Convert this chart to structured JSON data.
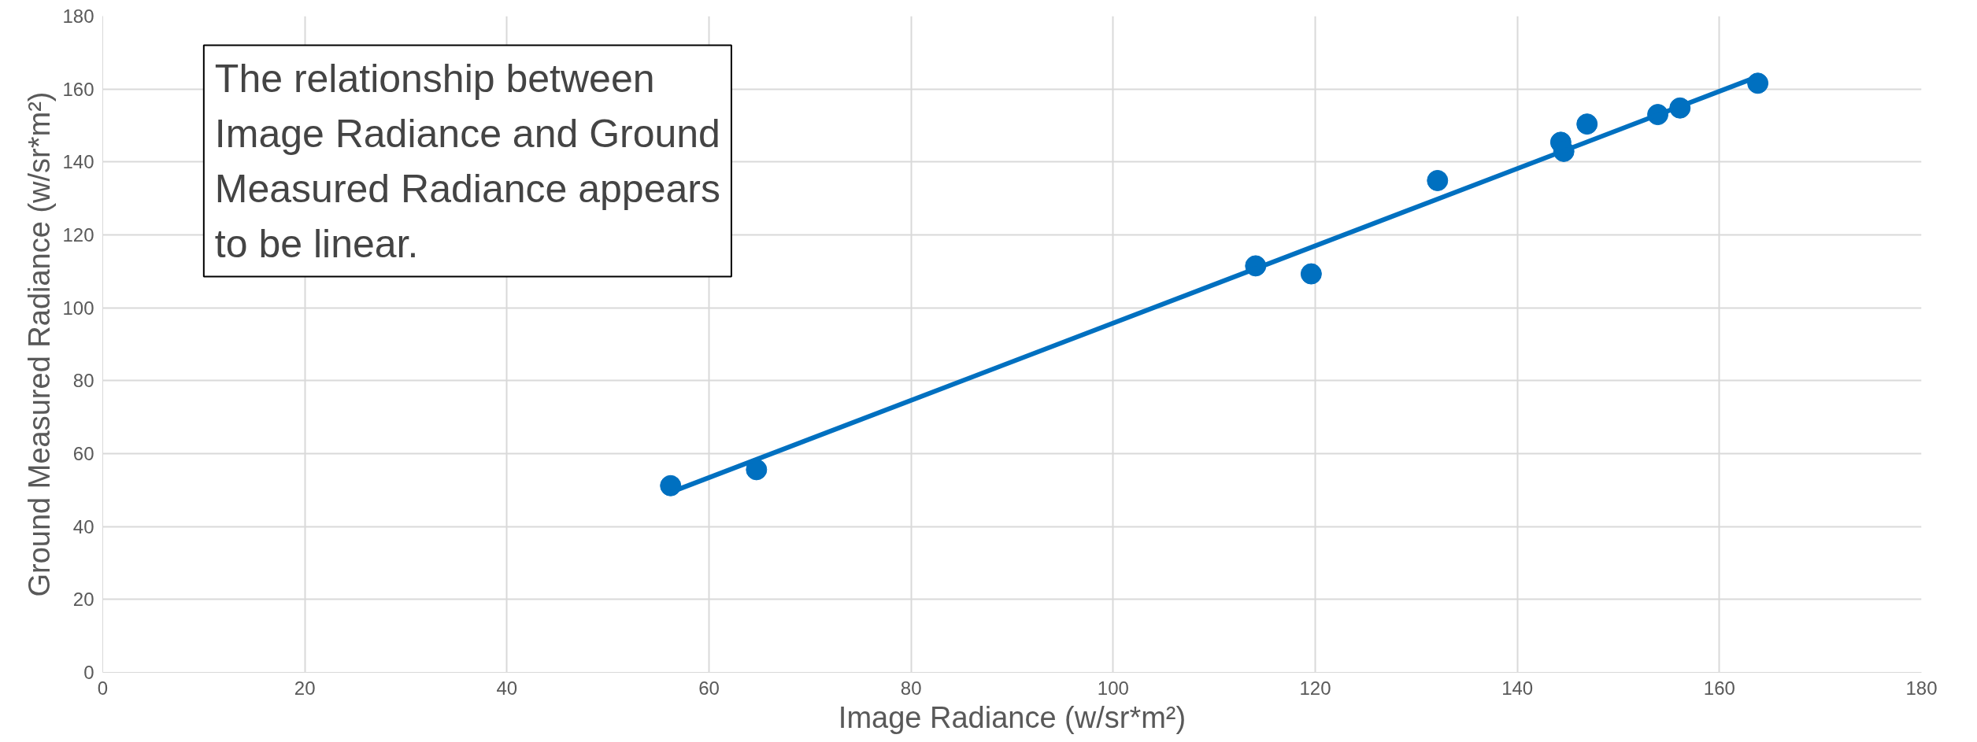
{
  "chart_data": {
    "type": "scatter",
    "xlabel": "Image Radiance (w/sr*m²)",
    "ylabel": "Ground Measured Radiance (w/sr*m²)",
    "series": [
      {
        "marker": "circle",
        "color": "#0070c0",
        "x": [
          56.2,
          64.7,
          114.1,
          119.6,
          132.1,
          144.3,
          144.6,
          146.9,
          153.9,
          156.1,
          163.8
        ],
        "values": [
          51.2,
          55.6,
          111.5,
          109.3,
          134.9,
          145.4,
          142.9,
          150.4,
          153.0,
          154.8,
          161.6
        ]
      },
      {
        "type": "line",
        "color": "#0070c0",
        "x": [
          56.2,
          163.8
        ],
        "values": [
          49.4,
          163.4
        ]
      }
    ],
    "xlim": [
      0,
      180
    ],
    "ylim": [
      0,
      180
    ],
    "xticks": [
      0,
      20,
      40,
      60,
      80,
      100,
      120,
      140,
      160,
      180
    ],
    "yticks": [
      0,
      20,
      40,
      60,
      80,
      100,
      120,
      140,
      160,
      180
    ],
    "grid": true,
    "line_style": "solid",
    "annotations": [
      "The relationship between Image Radiance and Ground Measured Radiance appears to be linear."
    ]
  }
}
